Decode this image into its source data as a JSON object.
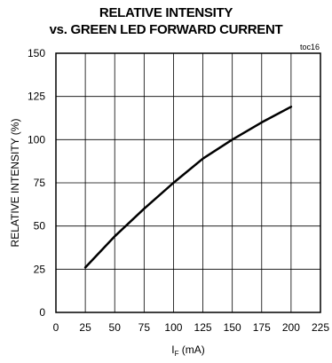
{
  "chart_data": {
    "type": "line",
    "title_line1": "RELATIVE INTENSITY",
    "title_line2": "vs. GREEN LED FORWARD CURRENT",
    "figure_code": "toc16",
    "xlabel_main": "I",
    "xlabel_sub": "F",
    "xlabel_unit": " (mA)",
    "ylabel": "RELATIVE INTENSITY  (%)",
    "xlim": [
      0,
      225
    ],
    "ylim": [
      0,
      150
    ],
    "x_ticks": [
      "0",
      "25",
      "50",
      "75",
      "100",
      "125",
      "150",
      "175",
      "200",
      "225"
    ],
    "y_ticks": [
      "0",
      "25",
      "50",
      "75",
      "100",
      "125",
      "150"
    ],
    "grid": true,
    "series": [
      {
        "x": [
          25,
          50,
          75,
          100,
          125,
          150,
          175,
          200
        ],
        "y": [
          26,
          44,
          60,
          75,
          89,
          100,
          110,
          119
        ]
      }
    ]
  }
}
